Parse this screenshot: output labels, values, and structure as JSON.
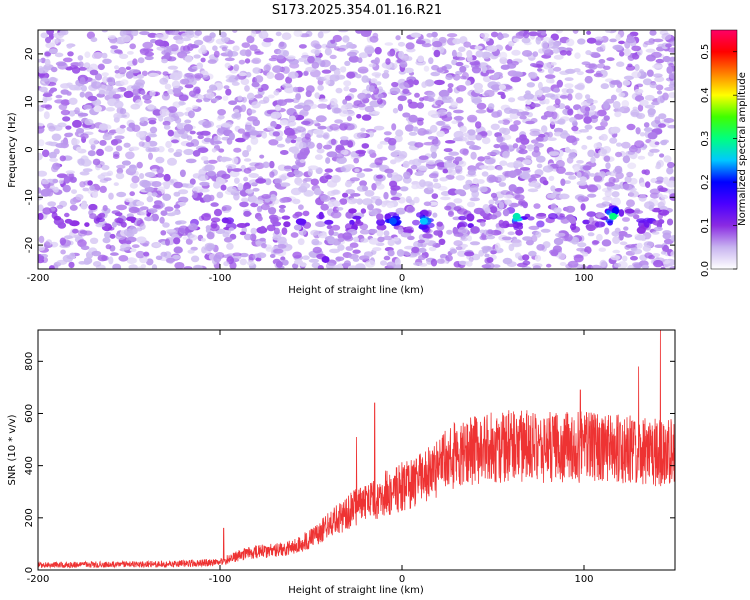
{
  "title": "S173.2025.354.01.16.R21",
  "chart_data": [
    {
      "type": "heatmap",
      "xlabel": "Height of straight line (km)",
      "ylabel": "Frequency (Hz)",
      "xlim": [
        -200,
        150
      ],
      "ylim": [
        -25,
        25
      ],
      "x_ticks": [
        -200,
        -100,
        0,
        100
      ],
      "y_ticks": [
        -20,
        -10,
        0,
        10,
        20
      ],
      "colorbar": {
        "label": "Normalized spectral amplitude",
        "range": [
          0,
          0.55
        ],
        "ticks": [
          "0.0",
          "0.1",
          "0.2",
          "0.3",
          "0.4",
          "0.5"
        ],
        "colors": [
          "#ffffff",
          "#c8b4f0",
          "#8a2be2",
          "#4b00ff",
          "#0000ff",
          "#00c8ff",
          "#00ff80",
          "#40ff00",
          "#ffff00",
          "#ff8000",
          "#ff0000",
          "#ff0066"
        ]
      },
      "features": [
        {
          "description": "horizontal band of elevated amplitude",
          "frequency_hz": -15,
          "x_range": [
            -200,
            150
          ]
        },
        {
          "peak_x": -5,
          "peak_freq": -15,
          "amplitude": 0.22
        },
        {
          "peak_x": 12,
          "peak_freq": -15,
          "amplitude": 0.25
        },
        {
          "peak_x": 63,
          "peak_freq": -14,
          "amplitude": 0.28
        },
        {
          "peak_x": 116,
          "peak_freq": -14,
          "amplitude": 0.3
        },
        {
          "peak_x": -42,
          "peak_freq": -23,
          "amplitude": 0.12
        }
      ]
    },
    {
      "type": "line",
      "xlabel": "Height of straight line (km)",
      "ylabel": "SNR (10 * v/v)",
      "xlim": [
        -200,
        150
      ],
      "ylim": [
        0,
        920
      ],
      "x_ticks": [
        -200,
        -100,
        0,
        100
      ],
      "y_ticks": [
        0,
        200,
        400,
        600,
        800
      ],
      "color": "#ee3333",
      "series": [
        {
          "x": [
            -200,
            -180,
            -160,
            -140,
            -120,
            -100,
            -90,
            -80,
            -70,
            -60,
            -50,
            -40,
            -30,
            -20,
            -10,
            0,
            10,
            20,
            25,
            30,
            40,
            50,
            60,
            70,
            80,
            90,
            100,
            110,
            120,
            130,
            140,
            150
          ],
          "values": [
            20,
            20,
            22,
            22,
            25,
            30,
            55,
            70,
            75,
            85,
            120,
            170,
            220,
            260,
            290,
            320,
            350,
            390,
            430,
            440,
            460,
            470,
            475,
            475,
            470,
            470,
            470,
            470,
            470,
            460,
            450,
            450
          ]
        }
      ],
      "spikes": [
        {
          "x": -98,
          "y": 160
        },
        {
          "x": -25,
          "y": 510
        },
        {
          "x": -15,
          "y": 640
        },
        {
          "x": 98,
          "y": 690
        },
        {
          "x": 130,
          "y": 780
        },
        {
          "x": 142,
          "y": 925
        }
      ]
    }
  ]
}
